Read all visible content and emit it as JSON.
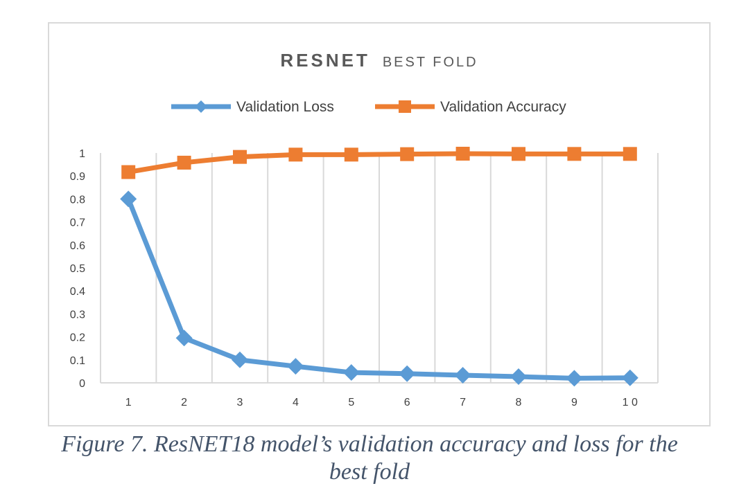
{
  "chart_data": {
    "type": "line",
    "title": "RESNET BEST FOLD",
    "title_parts": {
      "main": "RESNET",
      "sub": "BEST FOLD"
    },
    "categories": [
      "1",
      "2",
      "3",
      "4",
      "5",
      "6",
      "7",
      "8",
      "9",
      "1 0"
    ],
    "series": [
      {
        "name": "Validation Loss",
        "color": "#5b9bd5",
        "marker": "diamond",
        "values": [
          0.8,
          0.195,
          0.1,
          0.072,
          0.045,
          0.04,
          0.033,
          0.027,
          0.02,
          0.022
        ]
      },
      {
        "name": "Validation Accuracy",
        "color": "#ed7d31",
        "marker": "square",
        "values": [
          0.917,
          0.958,
          0.983,
          0.993,
          0.993,
          0.995,
          0.997,
          0.996,
          0.996,
          0.996
        ]
      }
    ],
    "y_ticks": [
      "0",
      "0.1",
      "0.2",
      "0.3",
      "0.4",
      "0.5",
      "0.6",
      "0.7",
      "0.8",
      "0.9",
      "1"
    ],
    "ylim": [
      0,
      1
    ],
    "grid": "vertical",
    "legend_position": "top"
  },
  "caption": "Figure 7. ResNET18 model’s validation accuracy and loss for the best fold",
  "caption_lines": [
    "Figure 7. ResNET18 model’s validation accuracy and loss for the",
    "best fold"
  ]
}
